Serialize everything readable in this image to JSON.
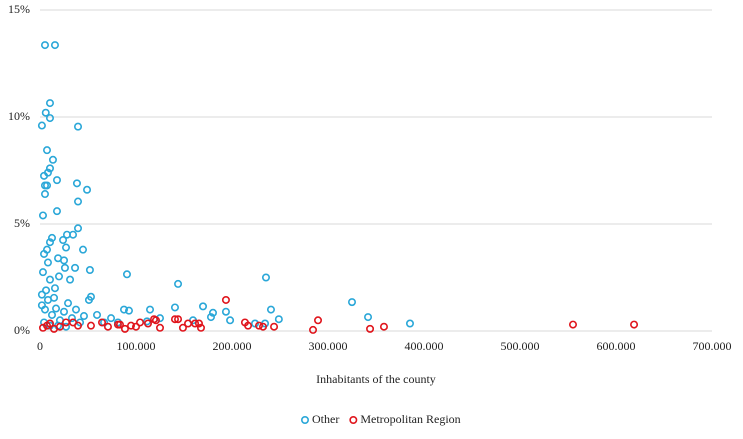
{
  "chart_data": {
    "type": "scatter",
    "x_label": "Inhabitants of the county",
    "xlim": [
      0,
      700000
    ],
    "xticks": [
      0,
      {
        "value": 100000,
        "label": "100.000"
      },
      {
        "value": 200000,
        "label": "200.000"
      },
      {
        "value": 300000,
        "label": "300.000"
      },
      {
        "value": 400000,
        "label": "400.000"
      },
      {
        "value": 500000,
        "label": "500.000"
      },
      {
        "value": 600000,
        "label": "600.000"
      },
      {
        "value": 700000,
        "label": "700.000"
      }
    ],
    "ylim": [
      0,
      15
    ],
    "yticks": [
      {
        "value": 0,
        "label": "0%"
      },
      {
        "value": 5,
        "label": "5%"
      },
      {
        "value": 10,
        "label": "10%"
      },
      {
        "value": 15,
        "label": "15%"
      }
    ],
    "grid": true,
    "legend": "bottom",
    "series": [
      {
        "name": "Other",
        "color": "#2aa7d8",
        "x": [
          5200,
          15600,
          10400,
          6000,
          10400,
          2000,
          39600,
          7300,
          13500,
          10400,
          8300,
          17700,
          4200,
          5200,
          7300,
          38500,
          49000,
          5200,
          39600,
          17700,
          3100,
          39600,
          28100,
          34400,
          12500,
          10400,
          24000,
          27100,
          7300,
          44800,
          4200,
          18800,
          8300,
          25000,
          26000,
          36500,
          52000,
          3100,
          19800,
          90600,
          143800,
          235400,
          325000,
          10400,
          31300,
          15600,
          53100,
          51000,
          87500,
          92700,
          114600,
          140600,
          169800,
          180200,
          178100,
          193700,
          198000,
          240600,
          248800,
          341700,
          385400,
          111500,
          159400,
          224000,
          234400,
          125000,
          59400,
          66700,
          74000,
          81200,
          2000,
          5200,
          8300,
          12500,
          16700,
          20800,
          25000,
          29200,
          33300,
          37500,
          41700,
          45800,
          4200,
          10400,
          18800,
          27100,
          2000,
          6300,
          14600
        ],
        "values": [
          13.36,
          13.36,
          10.65,
          10.2,
          9.95,
          9.6,
          9.55,
          8.45,
          8.0,
          7.6,
          7.4,
          7.05,
          7.25,
          6.8,
          6.8,
          6.9,
          6.6,
          6.4,
          6.05,
          5.6,
          5.4,
          4.8,
          4.5,
          4.5,
          4.35,
          4.15,
          4.25,
          3.9,
          3.8,
          3.8,
          3.6,
          3.4,
          3.2,
          3.3,
          2.95,
          2.95,
          2.85,
          2.75,
          2.55,
          2.65,
          2.2,
          2.5,
          1.35,
          2.4,
          2.4,
          2.0,
          1.6,
          1.45,
          1.0,
          0.95,
          1.0,
          1.1,
          1.15,
          0.85,
          0.65,
          0.9,
          0.5,
          1.0,
          0.55,
          0.65,
          0.35,
          0.45,
          0.5,
          0.35,
          0.35,
          0.6,
          0.75,
          0.4,
          0.6,
          0.4,
          1.2,
          1.0,
          1.45,
          0.75,
          1.05,
          0.5,
          0.9,
          1.3,
          0.6,
          1.0,
          0.4,
          0.7,
          0.4,
          0.25,
          0.25,
          0.2,
          1.7,
          1.9,
          1.55
        ]
      },
      {
        "name": "Metropolitan Region",
        "color": "#e0151c",
        "x": [
          193700,
          289600,
          213500,
          216700,
          228100,
          232300,
          243800,
          284400,
          343800,
          358300,
          555200,
          618800,
          140600,
          143800,
          148900,
          154200,
          161500,
          165600,
          167700,
          118800,
          120800,
          112500,
          125000,
          83300,
          88500,
          94800,
          100000,
          104200,
          64600,
          70800,
          81200,
          3100,
          7300,
          10400,
          14600,
          20800,
          27100,
          34400,
          39600,
          53100
        ],
        "values": [
          1.45,
          0.5,
          0.4,
          0.25,
          0.25,
          0.2,
          0.2,
          0.05,
          0.1,
          0.2,
          0.3,
          0.3,
          0.55,
          0.55,
          0.15,
          0.35,
          0.35,
          0.35,
          0.15,
          0.55,
          0.5,
          0.35,
          0.15,
          0.3,
          0.1,
          0.25,
          0.2,
          0.4,
          0.4,
          0.2,
          0.3,
          0.15,
          0.25,
          0.35,
          0.1,
          0.2,
          0.4,
          0.4,
          0.25,
          0.25
        ]
      }
    ]
  }
}
